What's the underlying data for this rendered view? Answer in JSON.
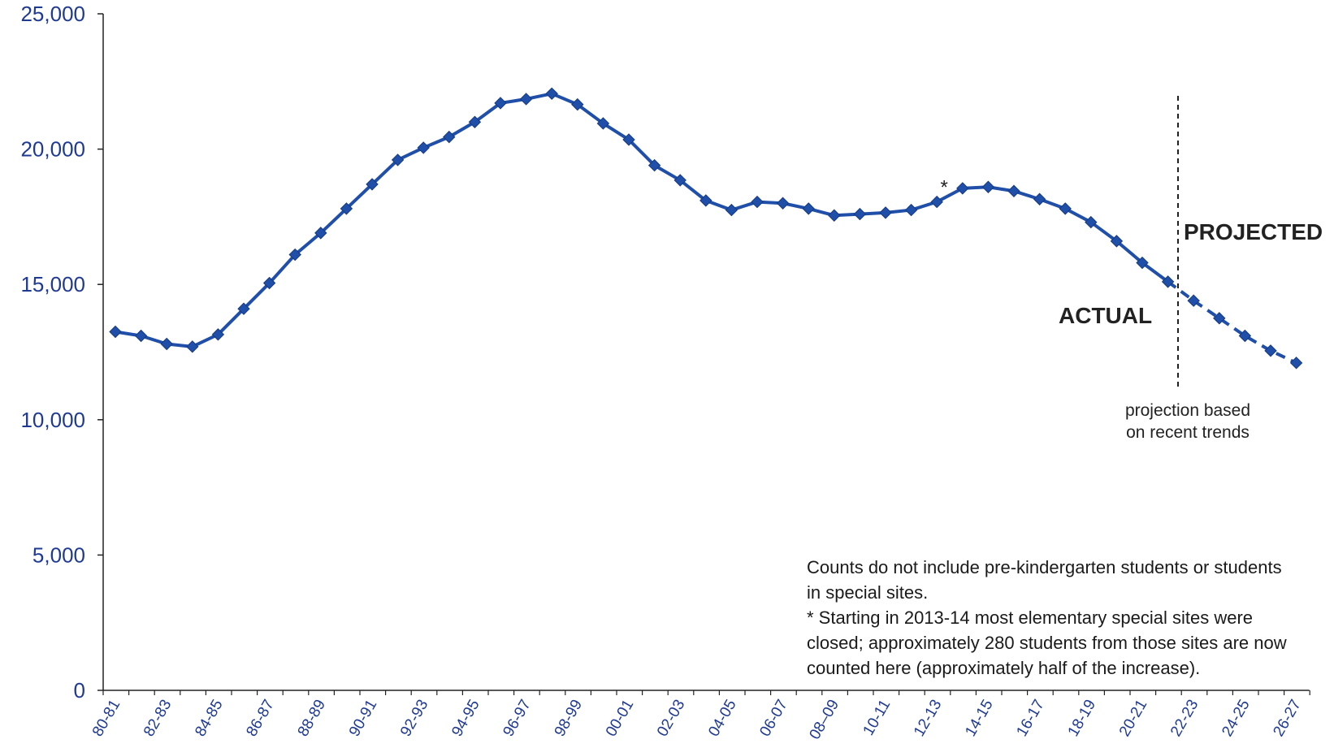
{
  "chart_data": {
    "type": "line",
    "title": "",
    "xlabel": "",
    "ylabel": "",
    "ylim": [
      0,
      25000
    ],
    "y_ticks": [
      0,
      5000,
      10000,
      15000,
      20000,
      25000
    ],
    "y_tick_labels": [
      "0",
      "5,000",
      "10,000",
      "15,000",
      "20,000",
      "25,000"
    ],
    "x": [
      "80-81",
      "81-82",
      "82-83",
      "83-84",
      "84-85",
      "85-86",
      "86-87",
      "87-88",
      "88-89",
      "89-90",
      "90-91",
      "91-92",
      "92-93",
      "93-94",
      "94-95",
      "95-96",
      "96-97",
      "97-98",
      "98-99",
      "99-00",
      "00-01",
      "01-02",
      "02-03",
      "03-04",
      "04-05",
      "05-06",
      "06-07",
      "07-08",
      "08-09",
      "09-10",
      "10-11",
      "11-12",
      "12-13",
      "13-14",
      "14-15",
      "15-16",
      "16-17",
      "17-18",
      "18-19",
      "19-20",
      "20-21",
      "21-22",
      "22-23",
      "23-24",
      "24-25",
      "25-26",
      "26-27"
    ],
    "x_tick_labels": [
      "80-81",
      "82-83",
      "84-85",
      "86-87",
      "88-89",
      "90-91",
      "92-93",
      "94-95",
      "96-97",
      "98-99",
      "00-01",
      "02-03",
      "04-05",
      "06-07",
      "08–09",
      "10-11",
      "12-13",
      "14-15",
      "16-17",
      "18-19",
      "20-21",
      "22-23",
      "24-25",
      "26-27"
    ],
    "series": [
      {
        "name": "",
        "values": [
          13250,
          13100,
          12800,
          12700,
          13150,
          14100,
          15050,
          16100,
          16900,
          17800,
          18700,
          19600,
          20050,
          20450,
          21000,
          21700,
          21850,
          22050,
          21650,
          20950,
          20350,
          19400,
          18850,
          18100,
          17750,
          18050,
          18000,
          17800,
          17550,
          17600,
          17650,
          17750,
          18050,
          18550,
          18600,
          18450,
          18150,
          17800,
          17300,
          16600,
          15800,
          15100,
          14400,
          13750,
          13100,
          12550,
          12100
        ],
        "actual_count": 42,
        "projected_from": "21-22",
        "color": "#1f4fa8"
      }
    ],
    "annotations": {
      "actual_label": "ACTUAL",
      "projected_label": "PROJECTED",
      "projection_note_line1": "projection based",
      "projection_note_line2": "on recent trends",
      "star_marker": "*",
      "star_at": "12-13"
    },
    "grid": false,
    "legend": "none"
  },
  "notes": {
    "line1": "Counts do not include pre-kindergarten students or students",
    "line2": "in special sites.",
    "line3": "* Starting in 2013-14 most elementary special sites were",
    "line4": "closed; approximately 280 students from those sites are now",
    "line5": "counted here (approximately half of the increase)."
  }
}
